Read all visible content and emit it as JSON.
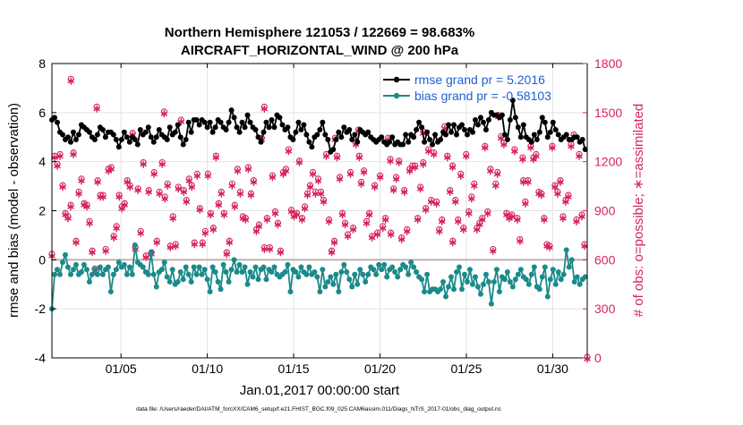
{
  "chart_data": {
    "type": "line",
    "title": "Northern Hemisphere 121053 / 122669 = 98.683%",
    "subtitle": "AIRCRAFT_HORIZONTAL_WIND @ 200 hPa",
    "xlabel": "Jan.01,2017 00:00:00 start",
    "ylabel_left": "rmse and bias (model - observation)",
    "ylabel_right": "# of obs: o=possible; ∗=assimilated",
    "xlim": [
      1,
      32
    ],
    "ylim_left": [
      -4,
      8
    ],
    "ylim_right": [
      0,
      1800
    ],
    "x_ticks": [
      5,
      10,
      15,
      20,
      25,
      30
    ],
    "x_tick_labels": [
      "01/05",
      "01/10",
      "01/15",
      "01/20",
      "01/25",
      "01/30"
    ],
    "y_left_ticks": [
      -4,
      -2,
      0,
      2,
      4,
      6,
      8
    ],
    "y_left_tick_labels": [
      "-4",
      "-2",
      "0",
      "2",
      "4",
      "6",
      "8"
    ],
    "y_right_ticks": [
      0,
      300,
      600,
      900,
      1200,
      1500,
      1800
    ],
    "y_right_tick_labels": [
      "0",
      "300",
      "600",
      "900",
      "1200",
      "1500",
      "1800"
    ],
    "colors": {
      "rmse": "#000000",
      "bias": "#1a8a8a",
      "obs": "#d6245a",
      "zero_line": "#c0b0b0",
      "grid": "#e3e3e3"
    },
    "legend": [
      {
        "label": "rmse grand pr = 5.2016",
        "series": "rmse"
      },
      {
        "label": "bias grand pr = -0.58103",
        "series": "bias"
      }
    ],
    "footer": "data file: /Users/raeder/DAI/ATM_forcXX/CAM6_setup/f.e21.FHIST_BGC.f09_025.CAM6assim.011/Diags_NTrS_2017-01/obs_diag_output.nc",
    "rmse": [
      5.7,
      5.8,
      5.6,
      5.2,
      5.1,
      4.9,
      5.0,
      4.8,
      5.2,
      4.9,
      5.1,
      5.5,
      5.4,
      5.3,
      5.2,
      5.0,
      4.9,
      5.1,
      5.4,
      5.3,
      5.0,
      5.2,
      5.2,
      5.1,
      4.9,
      4.6,
      4.9,
      5.2,
      5.0,
      4.8,
      5.0,
      4.9,
      4.7,
      5.3,
      5.1,
      5.2,
      5.4,
      5.0,
      4.8,
      5.0,
      5.3,
      5.1,
      5.0,
      4.9,
      5.4,
      5.1,
      5.2,
      5.5,
      5.0,
      4.7,
      4.9,
      5.6,
      5.2,
      5.7,
      5.7,
      5.5,
      5.7,
      5.6,
      5.4,
      5.6,
      5.2,
      5.4,
      5.7,
      5.6,
      5.4,
      5.3,
      5.6,
      6.1,
      5.8,
      5.4,
      5.2,
      5.6,
      5.4,
      5.9,
      5.6,
      5.4,
      5.3,
      5.0,
      4.8,
      5.2,
      5.6,
      5.4,
      5.7,
      5.4,
      5.9,
      5.8,
      5.5,
      5.3,
      5.4,
      5.0,
      4.9,
      5.2,
      5.6,
      5.3,
      5.5,
      5.1,
      4.8,
      4.6,
      5.0,
      5.1,
      5.3,
      5.6,
      5.1,
      4.9,
      4.4,
      4.5,
      4.9,
      5.2,
      5.0,
      5.4,
      5.2,
      5.3,
      4.9,
      5.1,
      4.8,
      5.3,
      5.2,
      5.1,
      5.2,
      5.0,
      4.9,
      4.8,
      4.9,
      5.0,
      4.8,
      4.7,
      4.8,
      5.0,
      4.7,
      4.8,
      4.7,
      4.7,
      5.1,
      4.8,
      5.1,
      5.0,
      5.3,
      5.6,
      5.4,
      4.8,
      5.2,
      4.9,
      4.7,
      5.1,
      4.8,
      4.9,
      5.2,
      5.1,
      5.5,
      5.2,
      5.5,
      5.1,
      5.4,
      5.5,
      5.3,
      5.1,
      5.3,
      5.2,
      5.7,
      5.5,
      5.8,
      5.6,
      5.3,
      5.7,
      6.0,
      5.9,
      5.9,
      5.8,
      5.9,
      5.1,
      4.9,
      5.7,
      6.5,
      5.8,
      5.4,
      5.0,
      5.5,
      5.0,
      4.9,
      4.8,
      5.1,
      4.9,
      5.2,
      5.8,
      5.6,
      5.0,
      5.2,
      5.6,
      5.3,
      5.1,
      4.9,
      5.0,
      5.1,
      4.9,
      4.9,
      5.0,
      5.0,
      4.8,
      4.9,
      4.5
    ],
    "bias": [
      -2.0,
      -0.6,
      -0.4,
      -0.6,
      -0.1,
      0.2,
      -0.3,
      -0.6,
      -0.4,
      -0.2,
      -0.6,
      -0.5,
      -0.2,
      -0.4,
      -0.9,
      -0.6,
      -0.4,
      -0.6,
      -0.3,
      -0.6,
      -0.4,
      -0.3,
      -1.3,
      -0.6,
      -0.4,
      -0.1,
      -0.3,
      -0.2,
      -0.6,
      -0.3,
      -0.6,
      0.6,
      -0.1,
      -0.2,
      -0.3,
      -0.5,
      -0.6,
      0.3,
      -0.6,
      -1.1,
      -0.5,
      -0.4,
      -0.1,
      -0.7,
      -0.9,
      -0.4,
      -1.0,
      -0.9,
      -0.5,
      -0.8,
      -0.3,
      -0.6,
      -0.9,
      -0.3,
      -0.6,
      -0.3,
      -0.6,
      -0.4,
      -0.8,
      -1.3,
      -0.3,
      -0.5,
      -0.9,
      -1.2,
      -0.2,
      -0.5,
      -0.9,
      -0.4,
      0.0,
      -0.5,
      -0.2,
      -0.5,
      -0.3,
      -1.0,
      -0.5,
      -0.7,
      -0.3,
      -0.8,
      -0.4,
      -0.3,
      -0.8,
      -0.4,
      -0.5,
      -0.3,
      -0.6,
      -0.7,
      -0.6,
      -0.5,
      -0.2,
      -1.3,
      -0.4,
      -0.5,
      -0.7,
      -0.3,
      -0.5,
      -0.6,
      -0.3,
      -0.6,
      -0.5,
      -0.7,
      -1.3,
      -0.4,
      -1.1,
      -0.9,
      -0.7,
      -1.0,
      -0.6,
      -1.3,
      -0.5,
      -0.2,
      -0.5,
      -0.8,
      -1.1,
      -0.6,
      -1.0,
      -0.4,
      -0.6,
      -0.9,
      -0.6,
      -0.3,
      -0.4,
      -0.6,
      -0.2,
      -0.4,
      -0.2,
      -0.7,
      -0.4,
      -0.3,
      -0.5,
      -0.7,
      -0.4,
      -0.2,
      -0.3,
      -0.6,
      -0.1,
      -0.3,
      -0.5,
      -0.7,
      -0.8,
      -1.3,
      -0.6,
      -1.3,
      -1.2,
      -1.2,
      -1.3,
      -1.2,
      -0.9,
      -1.5,
      -1.1,
      -0.7,
      -1.2,
      -0.5,
      -0.3,
      -1.2,
      -0.6,
      -0.9,
      -0.4,
      -1.0,
      -0.7,
      -1.1,
      -1.4,
      -1.0,
      -0.6,
      -0.9,
      -1.8,
      -0.9,
      -0.4,
      -1.3,
      -0.7,
      -0.8,
      -0.5,
      -0.9,
      -1.1,
      -0.8,
      -0.6,
      -0.4,
      -0.7,
      -0.8,
      -1.0,
      -0.6,
      -0.3,
      -1.1,
      -1.2,
      -0.7,
      -0.3,
      -1.5,
      -0.8,
      -0.4,
      -1.0,
      -0.5,
      -0.8,
      -0.6,
      0.4,
      -0.3,
      0.0,
      -0.9,
      -0.7,
      -1.0,
      -0.8,
      -0.7
    ],
    "obs_counts": [
      630,
      1230,
      1180,
      1240,
      1050,
      880,
      860,
      930,
      1250,
      710,
      1010,
      1090,
      940,
      930,
      830,
      650,
      540,
      1080,
      990,
      990,
      660,
      1150,
      1160,
      740,
      800,
      990,
      920,
      940,
      1080,
      1050,
      1370,
      670,
      1030,
      770,
      1190,
      620,
      1020,
      640,
      1130,
      710,
      1010,
      1190,
      980,
      1060,
      680,
      860,
      690,
      1040,
      1450,
      1020,
      960,
      1090,
      1050,
      700,
      1120,
      910,
      700,
      770,
      1120,
      880,
      790,
      1230,
      940,
      1010,
      880,
      640,
      710,
      1060,
      930,
      1150,
      1010,
      860,
      850,
      1160,
      1000,
      1080,
      780,
      810,
      1340,
      670,
      850,
      670,
      1110,
      890,
      820,
      650,
      1130,
      1150,
      1270,
      900,
      870,
      880,
      1200,
      850,
      920,
      1000,
      1050,
      1130,
      1010,
      1090,
      1010,
      960,
      1240,
      840,
      650,
      710,
      1230,
      1100,
      880,
      820,
      750,
      1130,
      790,
      1310,
      1390,
      1070,
      1140,
      830,
      880,
      740,
      1050,
      760,
      1110,
      800,
      850,
      1340,
      760,
      1030,
      1100,
      1200,
      730,
      1020,
      780,
      1150,
      1170,
      1170,
      850,
      1040,
      1380,
      910,
      1270,
      960,
      1250,
      950,
      780,
      840,
      1410,
      1230,
      1020,
      710,
      960,
      840,
      1120,
      790,
      1240,
      890,
      980,
      1060,
      790,
      820,
      850,
      1290,
      890,
      1150,
      660,
      1060,
      1480,
      1350,
      1310,
      880,
      860,
      870,
      1270,
      850,
      720,
      1220,
      950,
      1080,
      1290,
      1220,
      1240,
      1010,
      1000,
      850,
      690,
      680,
      1290,
      1050,
      1010,
      1080,
      860,
      960,
      990,
      1300,
      1360,
      840,
      1240,
      870,
      690,
      0
    ],
    "obs_possible_extra": [
      1700,
      1530,
      1500,
      1530,
      1340,
      1230,
      1210,
      1190,
      1170,
      1130,
      1080
    ]
  }
}
